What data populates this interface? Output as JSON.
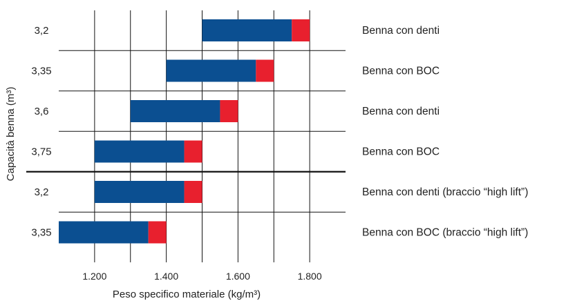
{
  "chart_data": {
    "type": "bar",
    "orientation": "horizontal",
    "title": "",
    "xlabel": "Peso specifico materiale (kg/m³)",
    "ylabel": "Capacità benna (m³)",
    "xlim": [
      1100,
      1900
    ],
    "xticks": [
      1200,
      1400,
      1600,
      1800
    ],
    "xtick_labels": [
      "1.200",
      "1.400",
      "1.600",
      "1.800"
    ],
    "grid": true,
    "separator_after_row": 4,
    "categories": [
      "3,2",
      "3,35",
      "3,6",
      "3,75",
      "3,2",
      "3,35"
    ],
    "row_labels": [
      "Benna con denti",
      "Benna con BOC",
      "Benna con denti",
      "Benna con BOC",
      "Benna con denti (braccio “high lift”)",
      "Benna con BOC (braccio “high lift”)"
    ],
    "series": [
      {
        "color": "#0b4f91",
        "ranges": [
          [
            1500,
            1750
          ],
          [
            1400,
            1650
          ],
          [
            1300,
            1550
          ],
          [
            1200,
            1450
          ],
          [
            1200,
            1450
          ],
          [
            1100,
            1350
          ]
        ]
      },
      {
        "color": "#e8202e",
        "ranges": [
          [
            1750,
            1800
          ],
          [
            1650,
            1700
          ],
          [
            1550,
            1600
          ],
          [
            1450,
            1500
          ],
          [
            1450,
            1500
          ],
          [
            1350,
            1400
          ]
        ]
      }
    ]
  }
}
